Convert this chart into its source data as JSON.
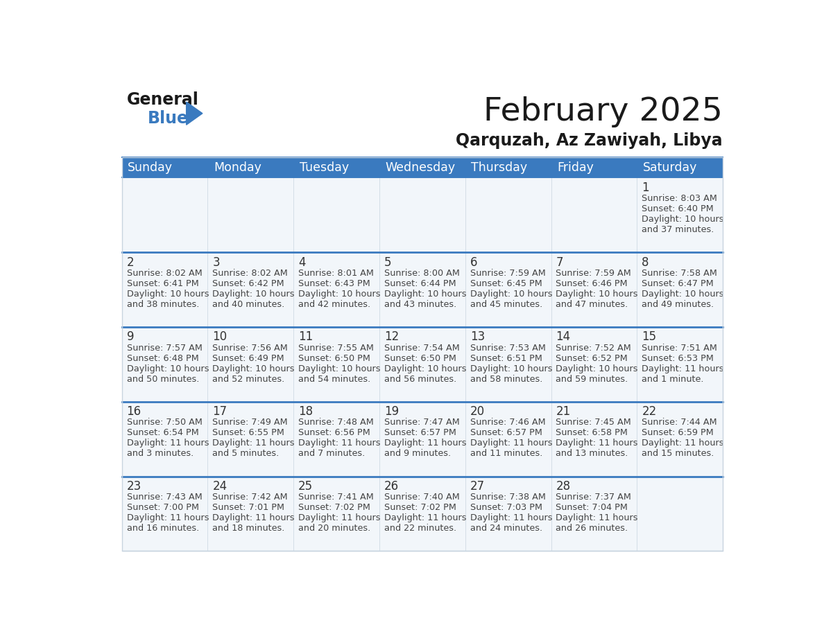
{
  "title": "February 2025",
  "subtitle": "Qarquzah, Az Zawiyah, Libya",
  "header_bg": "#3a7abf",
  "header_fg": "#ffffff",
  "days_of_week": [
    "Sunday",
    "Monday",
    "Tuesday",
    "Wednesday",
    "Thursday",
    "Friday",
    "Saturday"
  ],
  "cell_bg_even": "#f2f6fa",
  "cell_bg_white": "#ffffff",
  "row_divider_color": "#3a7abf",
  "col_divider_color": "#c8d4e0",
  "text_color": "#444444",
  "day_num_color": "#333333",
  "outer_border_color": "#3a7abf",
  "calendar_data": [
    [
      null,
      null,
      null,
      null,
      null,
      null,
      {
        "day": 1,
        "sunrise": "8:03 AM",
        "sunset": "6:40 PM",
        "daylight": "10 hours and 37 minutes."
      }
    ],
    [
      {
        "day": 2,
        "sunrise": "8:02 AM",
        "sunset": "6:41 PM",
        "daylight": "10 hours and 38 minutes."
      },
      {
        "day": 3,
        "sunrise": "8:02 AM",
        "sunset": "6:42 PM",
        "daylight": "10 hours and 40 minutes."
      },
      {
        "day": 4,
        "sunrise": "8:01 AM",
        "sunset": "6:43 PM",
        "daylight": "10 hours and 42 minutes."
      },
      {
        "day": 5,
        "sunrise": "8:00 AM",
        "sunset": "6:44 PM",
        "daylight": "10 hours and 43 minutes."
      },
      {
        "day": 6,
        "sunrise": "7:59 AM",
        "sunset": "6:45 PM",
        "daylight": "10 hours and 45 minutes."
      },
      {
        "day": 7,
        "sunrise": "7:59 AM",
        "sunset": "6:46 PM",
        "daylight": "10 hours and 47 minutes."
      },
      {
        "day": 8,
        "sunrise": "7:58 AM",
        "sunset": "6:47 PM",
        "daylight": "10 hours and 49 minutes."
      }
    ],
    [
      {
        "day": 9,
        "sunrise": "7:57 AM",
        "sunset": "6:48 PM",
        "daylight": "10 hours and 50 minutes."
      },
      {
        "day": 10,
        "sunrise": "7:56 AM",
        "sunset": "6:49 PM",
        "daylight": "10 hours and 52 minutes."
      },
      {
        "day": 11,
        "sunrise": "7:55 AM",
        "sunset": "6:50 PM",
        "daylight": "10 hours and 54 minutes."
      },
      {
        "day": 12,
        "sunrise": "7:54 AM",
        "sunset": "6:50 PM",
        "daylight": "10 hours and 56 minutes."
      },
      {
        "day": 13,
        "sunrise": "7:53 AM",
        "sunset": "6:51 PM",
        "daylight": "10 hours and 58 minutes."
      },
      {
        "day": 14,
        "sunrise": "7:52 AM",
        "sunset": "6:52 PM",
        "daylight": "10 hours and 59 minutes."
      },
      {
        "day": 15,
        "sunrise": "7:51 AM",
        "sunset": "6:53 PM",
        "daylight": "11 hours and 1 minute."
      }
    ],
    [
      {
        "day": 16,
        "sunrise": "7:50 AM",
        "sunset": "6:54 PM",
        "daylight": "11 hours and 3 minutes."
      },
      {
        "day": 17,
        "sunrise": "7:49 AM",
        "sunset": "6:55 PM",
        "daylight": "11 hours and 5 minutes."
      },
      {
        "day": 18,
        "sunrise": "7:48 AM",
        "sunset": "6:56 PM",
        "daylight": "11 hours and 7 minutes."
      },
      {
        "day": 19,
        "sunrise": "7:47 AM",
        "sunset": "6:57 PM",
        "daylight": "11 hours and 9 minutes."
      },
      {
        "day": 20,
        "sunrise": "7:46 AM",
        "sunset": "6:57 PM",
        "daylight": "11 hours and 11 minutes."
      },
      {
        "day": 21,
        "sunrise": "7:45 AM",
        "sunset": "6:58 PM",
        "daylight": "11 hours and 13 minutes."
      },
      {
        "day": 22,
        "sunrise": "7:44 AM",
        "sunset": "6:59 PM",
        "daylight": "11 hours and 15 minutes."
      }
    ],
    [
      {
        "day": 23,
        "sunrise": "7:43 AM",
        "sunset": "7:00 PM",
        "daylight": "11 hours and 16 minutes."
      },
      {
        "day": 24,
        "sunrise": "7:42 AM",
        "sunset": "7:01 PM",
        "daylight": "11 hours and 18 minutes."
      },
      {
        "day": 25,
        "sunrise": "7:41 AM",
        "sunset": "7:02 PM",
        "daylight": "11 hours and 20 minutes."
      },
      {
        "day": 26,
        "sunrise": "7:40 AM",
        "sunset": "7:02 PM",
        "daylight": "11 hours and 22 minutes."
      },
      {
        "day": 27,
        "sunrise": "7:38 AM",
        "sunset": "7:03 PM",
        "daylight": "11 hours and 24 minutes."
      },
      {
        "day": 28,
        "sunrise": "7:37 AM",
        "sunset": "7:04 PM",
        "daylight": "11 hours and 26 minutes."
      },
      null
    ]
  ]
}
